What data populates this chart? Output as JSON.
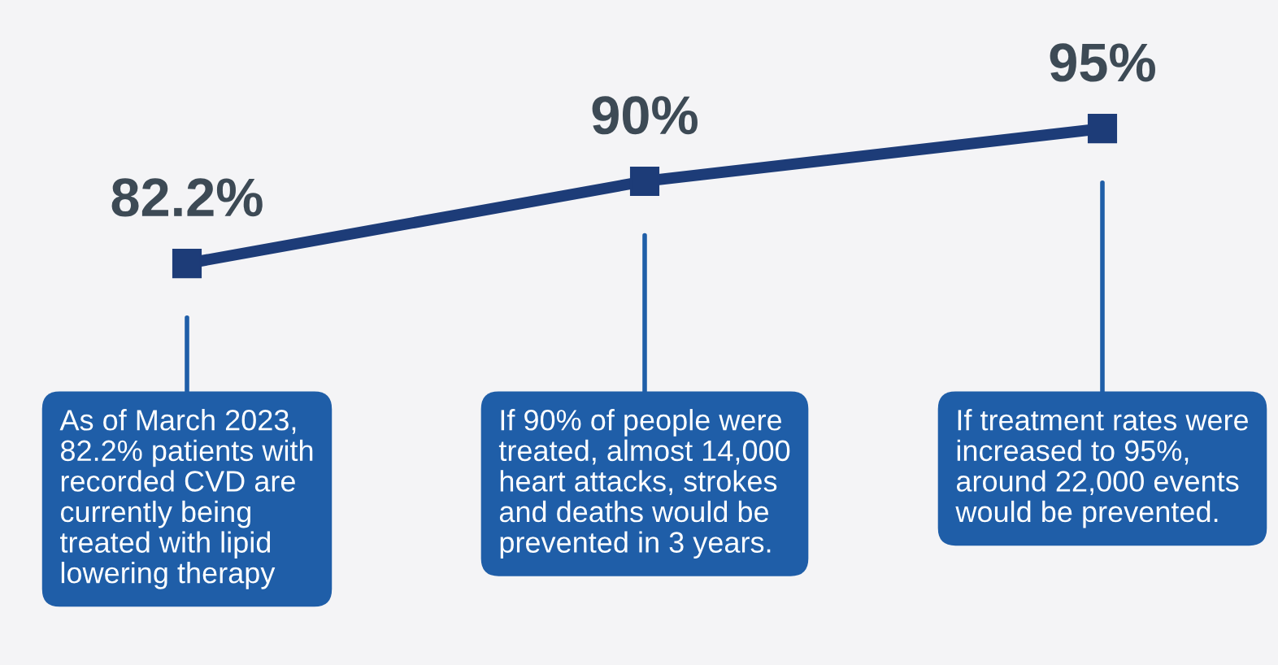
{
  "chart_data": {
    "type": "line",
    "categories": [
      null,
      null,
      null
    ],
    "series": [
      {
        "color": "#1d3c78",
        "values": [
          82.2,
          90,
          95
        ],
        "value_labels": [
          "82.2%",
          "90%",
          "95%"
        ]
      }
    ],
    "ylim": [
      44.1,
      107.2
    ],
    "marker": "square",
    "line_style": "solid",
    "grid": false,
    "legend": false,
    "annotations": [
      "As of March 2023,\n82.2% patients with\nrecorded CVD are\ncurrently being\ntreated with lipid\nlowering therapy",
      "If 90% of people were\ntreated, almost 14,000\nheart attacks, strokes\nand deaths would be\nprevented in 3 years.",
      "If treatment rates were\nincreased to 95%,\naround 22,000 events\nwould be prevented."
    ]
  }
}
